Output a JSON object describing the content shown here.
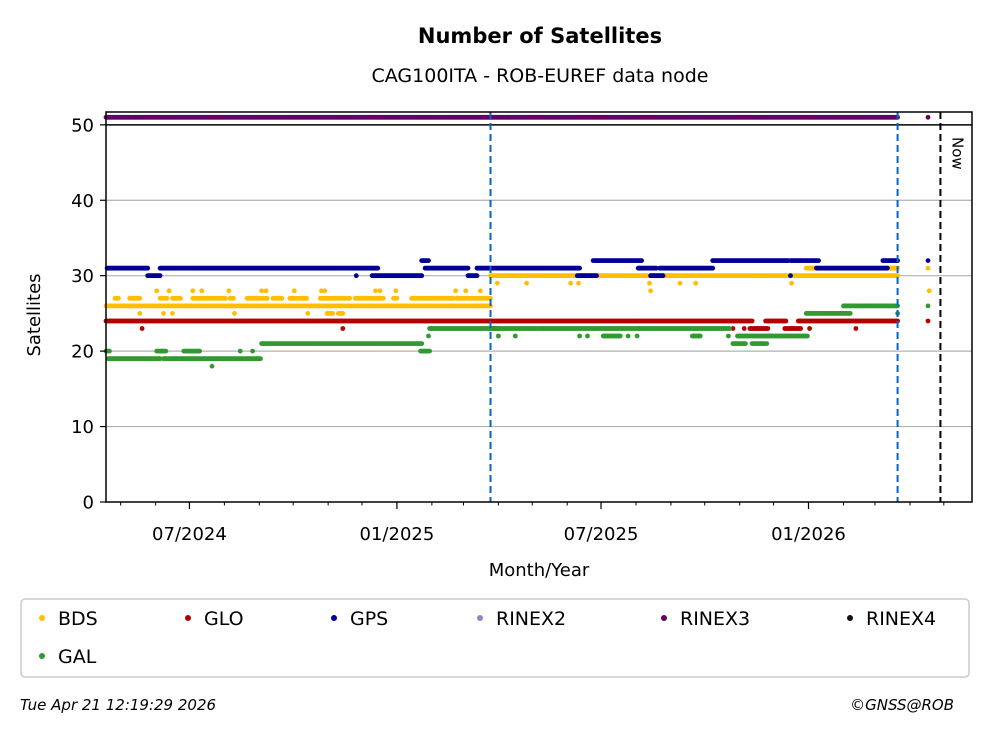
{
  "chart_data": {
    "type": "scatter",
    "title": "Number of Satellites",
    "subtitle": "CAG100ITA - ROB-EUREF data node",
    "xlabel": "Month/Year",
    "ylabel": "Satellites",
    "x_origin_date": "2024-04-18",
    "x_units": "days since x_origin_date",
    "xlim": [
      0,
      768
    ],
    "ylim": [
      0,
      51.7
    ],
    "yticks": [
      0,
      10,
      20,
      30,
      40,
      50
    ],
    "grid": "horizontal",
    "xticks": [
      {
        "date": "2024-07-01",
        "label": "07/2024"
      },
      {
        "date": "2025-01-01",
        "label": "01/2025"
      },
      {
        "date": "2025-07-01",
        "label": "07/2025"
      },
      {
        "date": "2026-01-01",
        "label": "01/2026"
      }
    ],
    "vlines": [
      {
        "day": 341,
        "style": "blue-dashed",
        "color": "#0066cc"
      },
      {
        "day": 702,
        "style": "blue-dashed",
        "color": "#0066cc"
      }
    ],
    "now_line": {
      "day": 740,
      "label": "Now",
      "color": "#000000"
    },
    "series": [
      {
        "name": "BDS",
        "color": "#ffbf00",
        "runs": [
          [
            0,
            341,
            26
          ],
          [
            8,
            11,
            27
          ],
          [
            21,
            30,
            27
          ],
          [
            48,
            54,
            27
          ],
          [
            59,
            66,
            27
          ],
          [
            77,
            106,
            27
          ],
          [
            110,
            113,
            27
          ],
          [
            125,
            143,
            27
          ],
          [
            148,
            156,
            27
          ],
          [
            163,
            178,
            27
          ],
          [
            190,
            216,
            27
          ],
          [
            221,
            232,
            27
          ],
          [
            234,
            246,
            27
          ],
          [
            255,
            258,
            27
          ],
          [
            271,
            308,
            27
          ],
          [
            311,
            341,
            27
          ],
          [
            341,
            702,
            30
          ],
          [
            621,
            631,
            31
          ],
          [
            689,
            702,
            31
          ],
          [
            196,
            201,
            25
          ],
          [
            206,
            210,
            25
          ]
        ],
        "points": [
          [
            45,
            28
          ],
          [
            56,
            28
          ],
          [
            77,
            28
          ],
          [
            85,
            28
          ],
          [
            109,
            28
          ],
          [
            138,
            28
          ],
          [
            142,
            28
          ],
          [
            167,
            28
          ],
          [
            191,
            28
          ],
          [
            194,
            28
          ],
          [
            239,
            28
          ],
          [
            243,
            28
          ],
          [
            257,
            28
          ],
          [
            310,
            28
          ],
          [
            319,
            28
          ],
          [
            332,
            28
          ],
          [
            30,
            25
          ],
          [
            51,
            25
          ],
          [
            59,
            25
          ],
          [
            114,
            25
          ],
          [
            179,
            25
          ],
          [
            347,
            29
          ],
          [
            373,
            29
          ],
          [
            412,
            29
          ],
          [
            419,
            29
          ],
          [
            482,
            29
          ],
          [
            509,
            29
          ],
          [
            523,
            29
          ],
          [
            608,
            29
          ],
          [
            483,
            28
          ],
          [
            729,
            31
          ],
          [
            730,
            28
          ]
        ]
      },
      {
        "name": "GLO",
        "color": "#b30000",
        "runs": [
          [
            0,
            573,
            24
          ],
          [
            585,
            603,
            24
          ],
          [
            614,
            702,
            24
          ],
          [
            341,
            349,
            23
          ],
          [
            571,
            587,
            23
          ],
          [
            602,
            616,
            23
          ]
        ],
        "points": [
          [
            32,
            23
          ],
          [
            210,
            23
          ],
          [
            289,
            23
          ],
          [
            388,
            23
          ],
          [
            473,
            23
          ],
          [
            556,
            23
          ],
          [
            566,
            23
          ],
          [
            624,
            23
          ],
          [
            665,
            23
          ],
          [
            729,
            24
          ]
        ]
      },
      {
        "name": "GPS",
        "color": "#000099",
        "runs": [
          [
            1,
            37,
            31
          ],
          [
            37,
            48,
            30
          ],
          [
            48,
            241,
            31
          ],
          [
            236,
            280,
            30
          ],
          [
            280,
            286,
            32
          ],
          [
            283,
            321,
            31
          ],
          [
            321,
            329,
            30
          ],
          [
            329,
            420,
            31
          ],
          [
            418,
            435,
            30
          ],
          [
            432,
            475,
            32
          ],
          [
            472,
            488,
            31
          ],
          [
            483,
            494,
            30
          ],
          [
            491,
            538,
            31
          ],
          [
            538,
            605,
            32
          ],
          [
            607,
            632,
            32
          ],
          [
            630,
            693,
            31
          ],
          [
            689,
            702,
            32
          ]
        ],
        "points": [
          [
            222,
            30
          ],
          [
            607,
            30
          ],
          [
            729,
            32
          ]
        ]
      },
      {
        "name": "RINEX2",
        "color": "#8c86c8",
        "runs": [],
        "points": []
      },
      {
        "name": "RINEX3",
        "color": "#660066",
        "runs": [
          [
            0,
            702,
            51
          ]
        ],
        "points": [
          [
            729,
            51
          ]
        ]
      },
      {
        "name": "RINEX4",
        "color": "#1a0a1a",
        "runs": [],
        "points": []
      },
      {
        "name": "GAL",
        "color": "#339933",
        "runs": [
          [
            0,
            3,
            20
          ],
          [
            2,
            48,
            19
          ],
          [
            45,
            53,
            20
          ],
          [
            51,
            137,
            19
          ],
          [
            69,
            83,
            20
          ],
          [
            138,
            280,
            21
          ],
          [
            279,
            287,
            20
          ],
          [
            287,
            553,
            23
          ],
          [
            560,
            622,
            22
          ],
          [
            556,
            567,
            21
          ],
          [
            573,
            586,
            21
          ],
          [
            621,
            660,
            25
          ],
          [
            654,
            702,
            26
          ],
          [
            441,
            456,
            22
          ],
          [
            520,
            527,
            22
          ]
        ],
        "points": [
          [
            119,
            20
          ],
          [
            130,
            20
          ],
          [
            94,
            18
          ],
          [
            286,
            22
          ],
          [
            348,
            22
          ],
          [
            363,
            22
          ],
          [
            420,
            22
          ],
          [
            427,
            22
          ],
          [
            463,
            22
          ],
          [
            471,
            22
          ],
          [
            552,
            22
          ],
          [
            702,
            25
          ],
          [
            729,
            26
          ]
        ]
      }
    ],
    "legend": {
      "placement": "bottom",
      "columns": 6
    }
  },
  "footer": {
    "timestamp": "Tue Apr 21 12:19:29 2026",
    "copyright": "©GNSS@ROB"
  }
}
